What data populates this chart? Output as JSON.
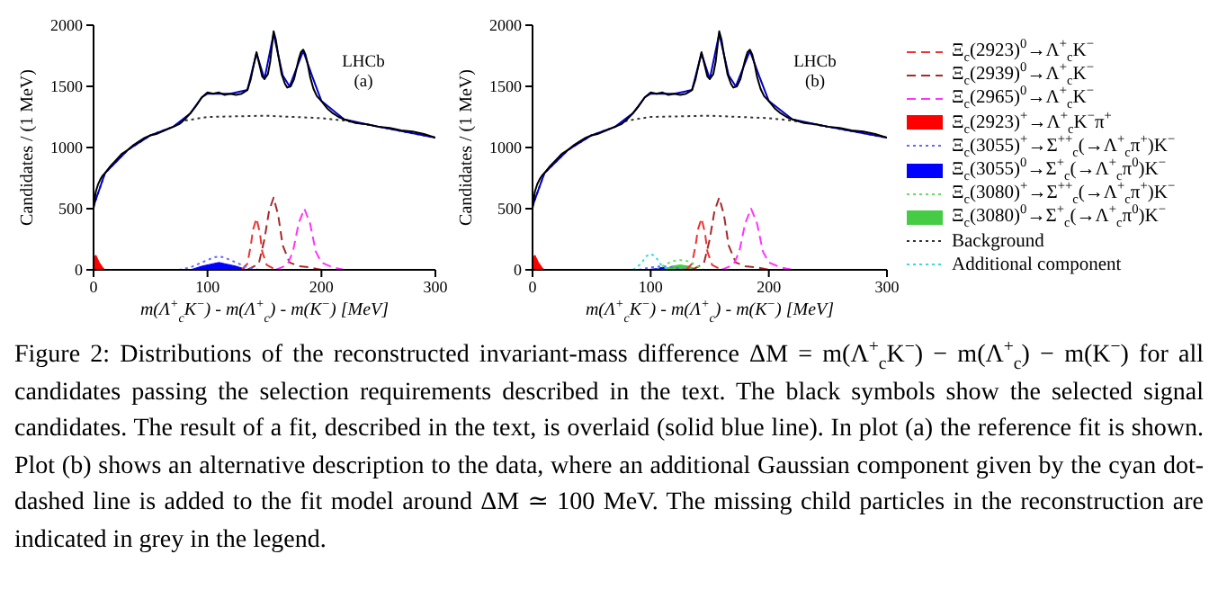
{
  "chart_data": [
    {
      "type": "line",
      "xlabel": "m(Λ$^{+}$$_{c}$K$^{−}$) - m(Λ$^{+}$$_{c}$) - m(K$^{−}$) [MeV]",
      "ylabel": "Candidates / (1 MeV)",
      "annotations": [
        "LHCb",
        "(a)"
      ],
      "xlim": [
        0,
        300
      ],
      "xticks": [
        0,
        100,
        200,
        300
      ],
      "ylim": [
        0,
        2000
      ],
      "yticks": [
        0,
        500,
        1000,
        1500,
        2000
      ],
      "series": [
        {
          "type": "line",
          "line_style": "dashed",
          "color": "#ee3333",
          "x": [
            130,
            135,
            138,
            140,
            143,
            146,
            148,
            152,
            160
          ],
          "values": [
            0,
            50,
            200,
            330,
            420,
            300,
            150,
            40,
            0
          ]
        },
        {
          "type": "line",
          "line_style": "dashed",
          "color": "#a52a2a",
          "x": [
            135,
            145,
            150,
            154,
            158,
            162,
            166,
            172,
            180,
            190,
            200
          ],
          "values": [
            0,
            50,
            250,
            480,
            590,
            450,
            200,
            60,
            30,
            20,
            0
          ]
        },
        {
          "type": "line",
          "line_style": "dashed",
          "color": "#ff33ff",
          "x": [
            160,
            170,
            175,
            180,
            185,
            190,
            195,
            200,
            210,
            220
          ],
          "values": [
            0,
            40,
            150,
            380,
            500,
            380,
            150,
            60,
            20,
            0
          ]
        },
        {
          "type": "area",
          "color": "#ff0000",
          "x": [
            0,
            2,
            5,
            8,
            10
          ],
          "values": [
            100,
            120,
            60,
            20,
            0
          ]
        },
        {
          "type": "line",
          "line_style": "dotted",
          "color": "#6666ff",
          "x": [
            75,
            85,
            95,
            105,
            110,
            115,
            125,
            135,
            145
          ],
          "values": [
            0,
            20,
            60,
            100,
            110,
            100,
            60,
            20,
            0
          ]
        },
        {
          "type": "area",
          "color": "#0000ff",
          "x": [
            85,
            95,
            105,
            110,
            115,
            125,
            135
          ],
          "values": [
            0,
            30,
            50,
            60,
            50,
            30,
            0
          ]
        },
        {
          "type": "line",
          "line_style": "dotted",
          "color": "#333333",
          "x": [
            0,
            10,
            30,
            50,
            70,
            80,
            100,
            150,
            200,
            220,
            250,
            300
          ],
          "values": [
            520,
            790,
            980,
            1100,
            1170,
            1220,
            1250,
            1260,
            1240,
            1220,
            1170,
            1080
          ]
        },
        {
          "type": "line",
          "color": "#0000cc",
          "x": [
            0,
            10,
            30,
            50,
            70,
            85,
            95,
            100,
            120,
            135,
            143,
            150,
            158,
            166,
            172,
            184,
            192,
            200,
            220,
            250,
            300
          ],
          "values": [
            520,
            790,
            980,
            1100,
            1170,
            1280,
            1410,
            1440,
            1440,
            1470,
            1770,
            1560,
            1930,
            1590,
            1500,
            1790,
            1580,
            1380,
            1230,
            1170,
            1080
          ]
        },
        {
          "type": "line",
          "color": "#000000",
          "x": [
            0,
            2,
            4,
            6,
            8,
            10,
            15,
            20,
            25,
            30,
            35,
            40,
            45,
            50,
            55,
            60,
            65,
            70,
            75,
            80,
            85,
            90,
            95,
            100,
            105,
            110,
            115,
            120,
            125,
            130,
            135,
            138,
            140,
            143,
            146,
            148,
            150,
            153,
            155,
            158,
            160,
            162,
            165,
            168,
            170,
            173,
            176,
            178,
            180,
            182,
            184,
            186,
            188,
            190,
            193,
            196,
            200,
            205,
            210,
            215,
            220,
            230,
            240,
            250,
            260,
            270,
            280,
            290,
            300
          ],
          "values": [
            500,
            640,
            700,
            740,
            770,
            790,
            850,
            900,
            950,
            980,
            1020,
            1050,
            1080,
            1100,
            1110,
            1130,
            1150,
            1170,
            1190,
            1230,
            1280,
            1340,
            1410,
            1450,
            1440,
            1450,
            1430,
            1440,
            1430,
            1440,
            1470,
            1560,
            1650,
            1780,
            1660,
            1580,
            1560,
            1600,
            1700,
            1950,
            1880,
            1760,
            1600,
            1520,
            1490,
            1500,
            1560,
            1640,
            1720,
            1780,
            1800,
            1760,
            1680,
            1580,
            1480,
            1420,
            1380,
            1320,
            1280,
            1250,
            1230,
            1200,
            1190,
            1170,
            1160,
            1140,
            1130,
            1110,
            1080
          ]
        }
      ]
    },
    {
      "type": "line",
      "xlabel": "m(Λ$^{+}$$_{c}$K$^{−}$) - m(Λ$^{+}$$_{c}$) - m(K$^{−}$) [MeV]",
      "ylabel": "Candidates / (1 MeV)",
      "annotations": [
        "LHCb",
        "(b)"
      ],
      "xlim": [
        0,
        300
      ],
      "xticks": [
        0,
        100,
        200,
        300
      ],
      "ylim": [
        0,
        2000
      ],
      "yticks": [
        0,
        500,
        1000,
        1500,
        2000
      ],
      "legend": "right",
      "series": [
        {
          "name": "Ξ$_{c}$(2923)$^{0}$→Λ$^{+}$$_{c}$K$^{−}$",
          "type": "line",
          "line_style": "dashed",
          "color": "#ee3333",
          "x": [
            130,
            135,
            138,
            140,
            143,
            146,
            148,
            152,
            160
          ],
          "values": [
            0,
            50,
            200,
            330,
            420,
            300,
            150,
            40,
            0
          ]
        },
        {
          "name": "Ξ$_{c}$(2939)$^{0}$→Λ$^{+}$$_{c}$K$^{−}$",
          "type": "line",
          "line_style": "dashed",
          "color": "#a52a2a",
          "x": [
            135,
            145,
            150,
            154,
            158,
            162,
            166,
            172,
            180,
            190,
            200
          ],
          "values": [
            0,
            50,
            250,
            480,
            590,
            450,
            200,
            60,
            30,
            20,
            0
          ]
        },
        {
          "name": "Ξ$_{c}$(2965)$^{0}$→Λ$^{+}$$_{c}$K$^{−}$",
          "type": "line",
          "line_style": "dashed",
          "color": "#ff33ff",
          "x": [
            160,
            170,
            175,
            180,
            185,
            190,
            195,
            200,
            210,
            220
          ],
          "values": [
            0,
            40,
            150,
            380,
            500,
            380,
            150,
            60,
            20,
            0
          ]
        },
        {
          "name": "Ξ$_{c}$(2923)$^{+}$→Λ$^{+}$$_{c}$K$^{−}$π$^{+}$",
          "type": "area",
          "color": "#ff0000",
          "x": [
            0,
            2,
            5,
            8,
            10
          ],
          "values": [
            100,
            120,
            60,
            20,
            0
          ]
        },
        {
          "name": "Ξ$_{c}$(3055)$^{+}$→Σ$^{++}$$_{c}$(→Λ$^{+}$$_{c}$π$^{+}$)K$^{−}$",
          "type": "line",
          "line_style": "dotted",
          "color": "#6666ff",
          "x": [
            90,
            100,
            110,
            120,
            130
          ],
          "values": [
            0,
            20,
            30,
            20,
            0
          ]
        },
        {
          "name": "Ξ$_{c}$(3055)$^{0}$→Σ$^{+}$$_{c}$(→Λ$^{+}$$_{c}$π$^{0}$)K$^{−}$",
          "type": "area",
          "color": "#0000ff",
          "x": [
            95,
            105,
            110,
            115,
            125
          ],
          "values": [
            0,
            10,
            20,
            10,
            0
          ]
        },
        {
          "name": "Ξ$_{c}$(3080)$^{+}$→Σ$^{++}$$_{c}$(→Λ$^{+}$$_{c}$π$^{+}$)K$^{−}$",
          "type": "line",
          "line_style": "dotted",
          "color": "#66dd66",
          "x": [
            105,
            112,
            118,
            125,
            132,
            138,
            145
          ],
          "values": [
            0,
            40,
            70,
            80,
            70,
            40,
            0
          ]
        },
        {
          "name": "Ξ$_{c}$(3080)$^{0}$→Σ$^{+}$$_{c}$(→Λ$^{+}$$_{c}$π$^{0}$)K$^{−}$",
          "type": "area",
          "color": "#44cc44",
          "x": [
            110,
            118,
            125,
            132,
            140
          ],
          "values": [
            0,
            30,
            40,
            30,
            0
          ]
        },
        {
          "name": "Background",
          "type": "line",
          "line_style": "dotted",
          "color": "#333333",
          "x": [
            0,
            10,
            30,
            50,
            70,
            80,
            100,
            150,
            200,
            220,
            250,
            300
          ],
          "values": [
            520,
            790,
            980,
            1100,
            1170,
            1220,
            1250,
            1260,
            1240,
            1220,
            1170,
            1080
          ]
        },
        {
          "name": "Additional component",
          "type": "line",
          "line_style": "dotted",
          "color": "#33dddd",
          "x": [
            85,
            92,
            96,
            100,
            104,
            108,
            115
          ],
          "values": [
            0,
            50,
            110,
            130,
            110,
            50,
            0
          ]
        },
        {
          "type": "line",
          "color": "#0000cc",
          "x": [
            0,
            10,
            30,
            50,
            70,
            85,
            95,
            100,
            120,
            135,
            143,
            150,
            158,
            166,
            172,
            184,
            192,
            200,
            220,
            250,
            300
          ],
          "values": [
            520,
            790,
            980,
            1100,
            1170,
            1280,
            1410,
            1440,
            1440,
            1470,
            1770,
            1560,
            1930,
            1590,
            1500,
            1790,
            1580,
            1380,
            1230,
            1170,
            1080
          ]
        },
        {
          "type": "line",
          "color": "#000000",
          "x": [
            0,
            2,
            4,
            6,
            8,
            10,
            15,
            20,
            25,
            30,
            35,
            40,
            45,
            50,
            55,
            60,
            65,
            70,
            75,
            80,
            85,
            90,
            95,
            100,
            105,
            110,
            115,
            120,
            125,
            130,
            135,
            138,
            140,
            143,
            146,
            148,
            150,
            153,
            155,
            158,
            160,
            162,
            165,
            168,
            170,
            173,
            176,
            178,
            180,
            182,
            184,
            186,
            188,
            190,
            193,
            196,
            200,
            205,
            210,
            215,
            220,
            230,
            240,
            250,
            260,
            270,
            280,
            290,
            300
          ],
          "values": [
            500,
            640,
            700,
            740,
            770,
            790,
            850,
            900,
            950,
            980,
            1020,
            1050,
            1080,
            1100,
            1110,
            1130,
            1150,
            1170,
            1190,
            1230,
            1280,
            1340,
            1410,
            1450,
            1440,
            1450,
            1430,
            1440,
            1430,
            1440,
            1470,
            1560,
            1650,
            1780,
            1660,
            1580,
            1560,
            1600,
            1700,
            1950,
            1880,
            1760,
            1600,
            1520,
            1490,
            1500,
            1560,
            1640,
            1720,
            1780,
            1800,
            1760,
            1680,
            1580,
            1480,
            1420,
            1380,
            1320,
            1280,
            1250,
            1230,
            1200,
            1190,
            1170,
            1160,
            1140,
            1130,
            1110,
            1080
          ]
        }
      ]
    },
    {
      "type": "other",
      "annotations": [
        "Figure 2: Distributions of the reconstructed invariant-mass difference ΔM = m(Λ$^{+}$$_{c}$K$^{−}$) − m(Λ$^{+}$$_{c}$) − m(K$^{−}$) for all candidates passing the selection requirements described in the text. The black symbols show the selected signal candidates. The result of a fit, described in the text, is overlaid (solid blue line). In plot (a) the reference fit is shown. Plot (b) shows an alternative description to the data, where an additional Gaussian component given by the cyan dot-dashed line is added to the fit model around ΔM ≃ 100 MeV. The missing child particles in the reconstruction are indicated in grey in the legend."
      ]
    }
  ]
}
